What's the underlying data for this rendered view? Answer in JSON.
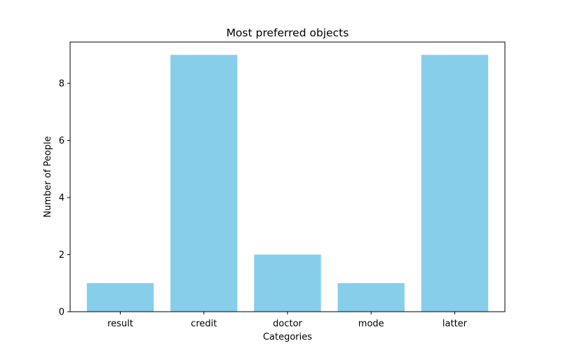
{
  "chart_data": {
    "type": "bar",
    "title": "Most preferred objects",
    "xlabel": "Categories",
    "ylabel": "Number of People",
    "categories": [
      "result",
      "credit",
      "doctor",
      "mode",
      "latter"
    ],
    "values": [
      1,
      9,
      2,
      1,
      9
    ],
    "ylim": [
      0,
      9.45
    ],
    "yticks": [
      0,
      2,
      4,
      6,
      8
    ],
    "bar_color": "#87ceeb",
    "grid": false,
    "legend": "none"
  }
}
